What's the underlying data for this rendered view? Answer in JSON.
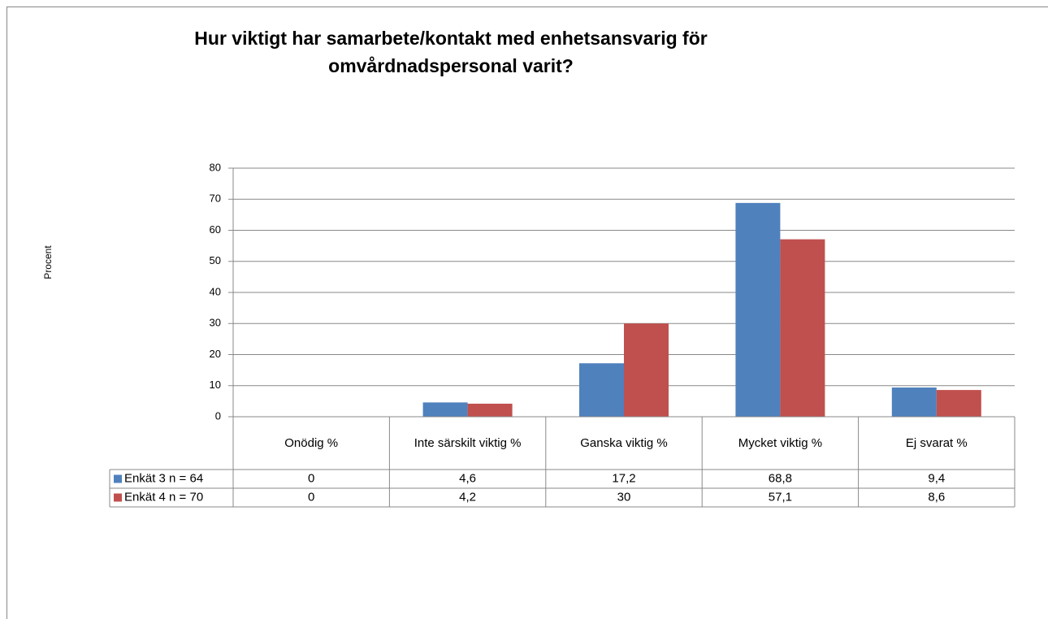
{
  "chart_data": {
    "type": "bar",
    "title": "Hur viktigt har samarbete/kontakt med enhetsansvarig för omvårdnadspersonal varit?",
    "ylabel": "Procent",
    "categories": [
      "Onödig %",
      "Inte särskilt viktig %",
      "Ganska viktig %",
      "Mycket viktig %",
      "Ej svarat %"
    ],
    "series": [
      {
        "name": "Enkät 3 n = 64",
        "color": "#4f81bd",
        "values": [
          0,
          4.6,
          17.2,
          68.8,
          9.4
        ],
        "value_labels": [
          "0",
          "4,6",
          "17,2",
          "68,8",
          "9,4"
        ]
      },
      {
        "name": "Enkät 4 n = 70",
        "color": "#c0504d",
        "values": [
          0,
          4.2,
          30,
          57.1,
          8.6
        ],
        "value_labels": [
          "0",
          "4,2",
          "30",
          "57,1",
          "8,6"
        ]
      }
    ],
    "ylim": [
      0,
      80
    ],
    "yticks": [
      0,
      10,
      20,
      30,
      40,
      50,
      60,
      70,
      80
    ],
    "grid": true,
    "data_table": true
  }
}
